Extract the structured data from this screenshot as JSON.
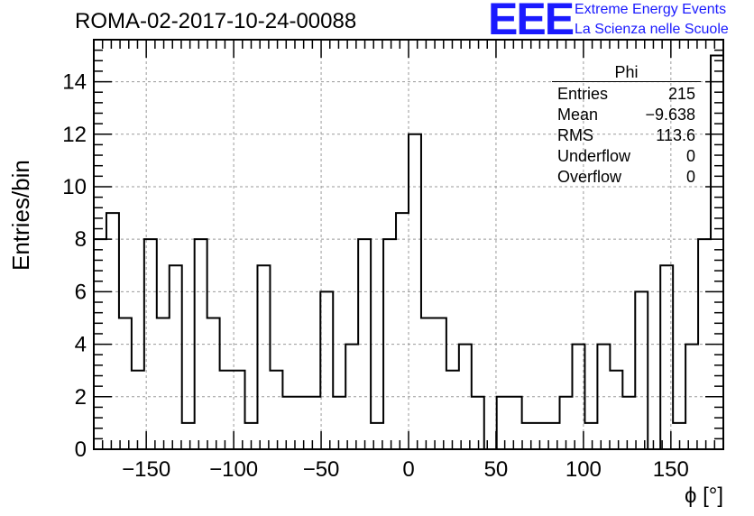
{
  "header": {
    "title": "ROMA-02-2017-10-24-00088"
  },
  "logo": {
    "mark": "EEE",
    "line1": "Extreme Energy Events",
    "line2": "La Scienza nelle Scuole"
  },
  "stats": {
    "title": "Phi",
    "rows": [
      {
        "label": "Entries",
        "value": "215"
      },
      {
        "label": "Mean",
        "value": "−9.638"
      },
      {
        "label": "RMS",
        "value": "113.6"
      },
      {
        "label": "Underflow",
        "value": "0"
      },
      {
        "label": "Overflow",
        "value": "0"
      }
    ]
  },
  "colors": {
    "line": "#000000",
    "grid": "#9a9a9a",
    "logo": "#1a1aff"
  },
  "chart_data": {
    "type": "bar",
    "style": "step-histogram",
    "xlabel": "ϕ [°]",
    "ylabel": "Entries/bin",
    "xlim": [
      -180,
      180
    ],
    "ylim": [
      0,
      15.6
    ],
    "bin_width": 7.2,
    "xticks": [
      -150,
      -100,
      -50,
      0,
      50,
      100,
      150
    ],
    "xtick_labels": [
      "−150",
      "−100",
      "−50",
      "0",
      "50",
      "100",
      "150"
    ],
    "yticks": [
      0,
      2,
      4,
      6,
      8,
      10,
      12,
      14
    ],
    "ytick_labels": [
      "0",
      "2",
      "4",
      "6",
      "8",
      "10",
      "12",
      "14"
    ],
    "grid": true,
    "bin_low_edges": [
      -180,
      -172.8,
      -165.6,
      -158.4,
      -151.2,
      -144,
      -136.8,
      -129.6,
      -122.4,
      -115.2,
      -108,
      -100.8,
      -93.6,
      -86.4,
      -79.2,
      -72,
      -64.8,
      -57.6,
      -50.4,
      -43.2,
      -36,
      -28.8,
      -21.6,
      -14.4,
      -7.2,
      0,
      7.2,
      14.4,
      21.6,
      28.8,
      36,
      43.2,
      50.4,
      57.6,
      64.8,
      72,
      79.2,
      86.4,
      93.6,
      100.8,
      108,
      115.2,
      122.4,
      129.6,
      136.8,
      144,
      151.2,
      158.4,
      165.6,
      172.8
    ],
    "values": [
      8,
      9,
      5,
      3,
      8,
      5,
      7,
      1,
      8,
      5,
      3,
      3,
      1,
      7,
      3,
      2,
      2,
      2,
      6,
      2,
      4,
      8,
      1,
      8,
      9,
      12,
      5,
      5,
      3,
      4,
      2,
      0,
      2,
      2,
      1,
      1,
      1,
      2,
      4,
      1,
      4,
      3,
      2,
      6,
      0,
      7,
      1,
      4,
      8,
      15
    ]
  }
}
